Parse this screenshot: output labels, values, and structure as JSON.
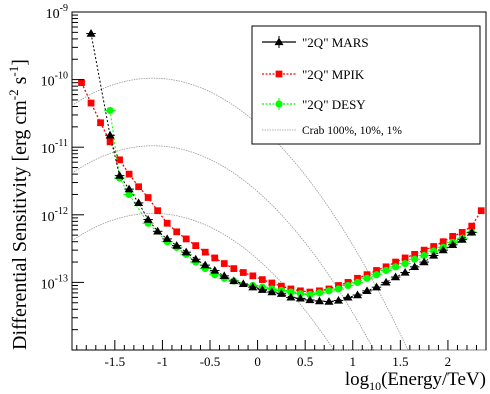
{
  "chart_data": {
    "type": "scatter",
    "xlabel": "log10(Energy/TeV)",
    "xlabel_parts": {
      "pre": "log",
      "sub": "10",
      "post": "(Energy/TeV)"
    },
    "ylabel": "Differential Sensitivity [erg cm-2 s-1]",
    "ylabel_parts": {
      "main": "Differential Sensitivity [erg cm",
      "sup1": "-2",
      "mid": " s",
      "sup2": "-1",
      "end": "]"
    },
    "x_range": [
      -1.95,
      2.4
    ],
    "y_range_log10": [
      -14,
      -9
    ],
    "log_y": true,
    "x_ticks": [
      {
        "value": -1.5,
        "label": "-1.5"
      },
      {
        "value": -1,
        "label": "-1"
      },
      {
        "value": -0.5,
        "label": "-0.5"
      },
      {
        "value": 0,
        "label": "0"
      },
      {
        "value": 0.5,
        "label": "0.5"
      },
      {
        "value": 1,
        "label": "1"
      },
      {
        "value": 1.5,
        "label": "1.5"
      },
      {
        "value": 2,
        "label": "2"
      }
    ],
    "y_ticks": [
      {
        "exp": -13,
        "base": "10",
        "sup": "-13"
      },
      {
        "exp": -12,
        "base": "10",
        "sup": "-12"
      },
      {
        "exp": -11,
        "base": "10",
        "sup": "-11"
      },
      {
        "exp": -10,
        "base": "10",
        "sup": "-10"
      },
      {
        "exp": -9,
        "base": "10",
        "sup": "-9"
      }
    ],
    "legend_position": "top-right",
    "series": [
      {
        "name": "\"2Q\" MARS",
        "color": "#000000",
        "marker": "triangle",
        "line": "dotted",
        "xerr": 0.05,
        "points": [
          [
            -1.75,
            4.8e-10
          ],
          [
            -1.55,
            1.5e-11
          ],
          [
            -1.45,
            3.8e-12
          ],
          [
            -1.35,
            2.4e-12
          ],
          [
            -1.25,
            1.5e-12
          ],
          [
            -1.15,
            8.5e-13
          ],
          [
            -1.05,
            5.7e-13
          ],
          [
            -0.95,
            4.4e-13
          ],
          [
            -0.85,
            3.5e-13
          ],
          [
            -0.75,
            2.8e-13
          ],
          [
            -0.65,
            2.2e-13
          ],
          [
            -0.55,
            1.8e-13
          ],
          [
            -0.45,
            1.5e-13
          ],
          [
            -0.35,
            1.25e-13
          ],
          [
            -0.25,
            1.05e-13
          ],
          [
            -0.15,
            9.5e-14
          ],
          [
            -0.05,
            8.5e-14
          ],
          [
            0.05,
            7.8e-14
          ],
          [
            0.15,
            7.2e-14
          ],
          [
            0.25,
            6.8e-14
          ],
          [
            0.35,
            6e-14
          ],
          [
            0.45,
            5.8e-14
          ],
          [
            0.55,
            5.5e-14
          ],
          [
            0.65,
            5.3e-14
          ],
          [
            0.75,
            5.2e-14
          ],
          [
            0.85,
            5.4e-14
          ],
          [
            0.95,
            6e-14
          ],
          [
            1.05,
            6.5e-14
          ],
          [
            1.15,
            7.5e-14
          ],
          [
            1.25,
            8.5e-14
          ],
          [
            1.35,
            1e-13
          ],
          [
            1.45,
            1.2e-13
          ],
          [
            1.55,
            1.4e-13
          ],
          [
            1.65,
            1.7e-13
          ],
          [
            1.75,
            2e-13
          ],
          [
            1.85,
            2.5e-13
          ],
          [
            1.95,
            3e-13
          ],
          [
            2.05,
            3.6e-13
          ],
          [
            2.15,
            4.3e-13
          ],
          [
            2.25,
            5.5e-13
          ]
        ]
      },
      {
        "name": "\"2Q\" MPIK",
        "color": "#ff0000",
        "marker": "square",
        "line": "dotted",
        "xerr": 0,
        "points": [
          [
            -1.85,
            9e-11
          ],
          [
            -1.75,
            4.5e-11
          ],
          [
            -1.65,
            2.3e-11
          ],
          [
            -1.55,
            1.2e-11
          ],
          [
            -1.45,
            6.5e-12
          ],
          [
            -1.35,
            4e-12
          ],
          [
            -1.25,
            2.6e-12
          ],
          [
            -1.15,
            1.8e-12
          ],
          [
            -1.05,
            1.15e-12
          ],
          [
            -0.95,
            7.5e-13
          ],
          [
            -0.85,
            5.6e-13
          ],
          [
            -0.75,
            4.4e-13
          ],
          [
            -0.65,
            3.5e-13
          ],
          [
            -0.55,
            2.8e-13
          ],
          [
            -0.45,
            2.3e-13
          ],
          [
            -0.35,
            1.9e-13
          ],
          [
            -0.25,
            1.6e-13
          ],
          [
            -0.15,
            1.4e-13
          ],
          [
            -0.05,
            1.25e-13
          ],
          [
            0.05,
            1.1e-13
          ],
          [
            0.15,
            9.8e-14
          ],
          [
            0.25,
            8.8e-14
          ],
          [
            0.35,
            8e-14
          ],
          [
            0.45,
            7.5e-14
          ],
          [
            0.55,
            7.2e-14
          ],
          [
            0.65,
            7.5e-14
          ],
          [
            0.75,
            8e-14
          ],
          [
            0.85,
            9e-14
          ],
          [
            0.95,
            1e-13
          ],
          [
            1.05,
            1.15e-13
          ],
          [
            1.15,
            1.3e-13
          ],
          [
            1.25,
            1.5e-13
          ],
          [
            1.35,
            1.7e-13
          ],
          [
            1.45,
            2e-13
          ],
          [
            1.55,
            2.3e-13
          ],
          [
            1.65,
            2.6e-13
          ],
          [
            1.75,
            3e-13
          ],
          [
            1.85,
            3.4e-13
          ],
          [
            1.95,
            4e-13
          ],
          [
            2.05,
            4.8e-13
          ],
          [
            2.15,
            5.5e-13
          ],
          [
            2.25,
            6.8e-13
          ],
          [
            2.35,
            1.15e-12
          ]
        ]
      },
      {
        "name": "\"2Q\" DESY",
        "color": "#00ff00",
        "marker": "circle",
        "line": "dotted",
        "xerr": 0.06,
        "points": [
          [
            -1.55,
            3.5e-11
          ],
          [
            -1.45,
            3.5e-12
          ],
          [
            -1.35,
            2e-12
          ],
          [
            -1.15,
            7.5e-13
          ],
          [
            -0.95,
            4e-13
          ],
          [
            -0.85,
            3.3e-13
          ],
          [
            -0.75,
            2.6e-13
          ],
          [
            -0.65,
            2e-13
          ],
          [
            -0.55,
            1.6e-13
          ],
          [
            -0.45,
            1.3e-13
          ],
          [
            -0.35,
            1.15e-13
          ],
          [
            -0.25,
            1.05e-13
          ],
          [
            -0.05,
            9e-14
          ],
          [
            0.05,
            8.5e-14
          ],
          [
            0.15,
            8e-14
          ],
          [
            0.25,
            7.6e-14
          ],
          [
            0.35,
            7.2e-14
          ],
          [
            0.45,
            6.8e-14
          ],
          [
            0.55,
            6.6e-14
          ],
          [
            0.65,
            7e-14
          ],
          [
            0.75,
            7.5e-14
          ],
          [
            0.85,
            8e-14
          ],
          [
            0.95,
            9e-14
          ],
          [
            1.05,
            1e-13
          ],
          [
            1.15,
            1.15e-13
          ],
          [
            1.25,
            1.3e-13
          ],
          [
            1.35,
            1.5e-13
          ],
          [
            1.45,
            1.7e-13
          ],
          [
            1.55,
            1.9e-13
          ],
          [
            1.65,
            2.2e-13
          ],
          [
            1.75,
            2.5e-13
          ],
          [
            1.85,
            2.9e-13
          ],
          [
            1.95,
            3.3e-13
          ],
          [
            2.05,
            3.9e-13
          ],
          [
            2.15,
            4.5e-13
          ],
          [
            2.25,
            5.5e-13
          ]
        ]
      }
    ],
    "reference_curves": {
      "name": "Crab 100%, 10%, 1%",
      "color": "#999999",
      "shape": "log-parabola",
      "peak_x": -1.1,
      "curvature": 0.56,
      "x_range": [
        -1.95,
        2.4
      ],
      "levels": [
        {
          "label": "100%",
          "peak_y": 1.05e-10
        },
        {
          "label": "10%",
          "peak_y": 1.05e-11
        },
        {
          "label": "1%",
          "peak_y": 1.05e-12
        }
      ]
    }
  }
}
